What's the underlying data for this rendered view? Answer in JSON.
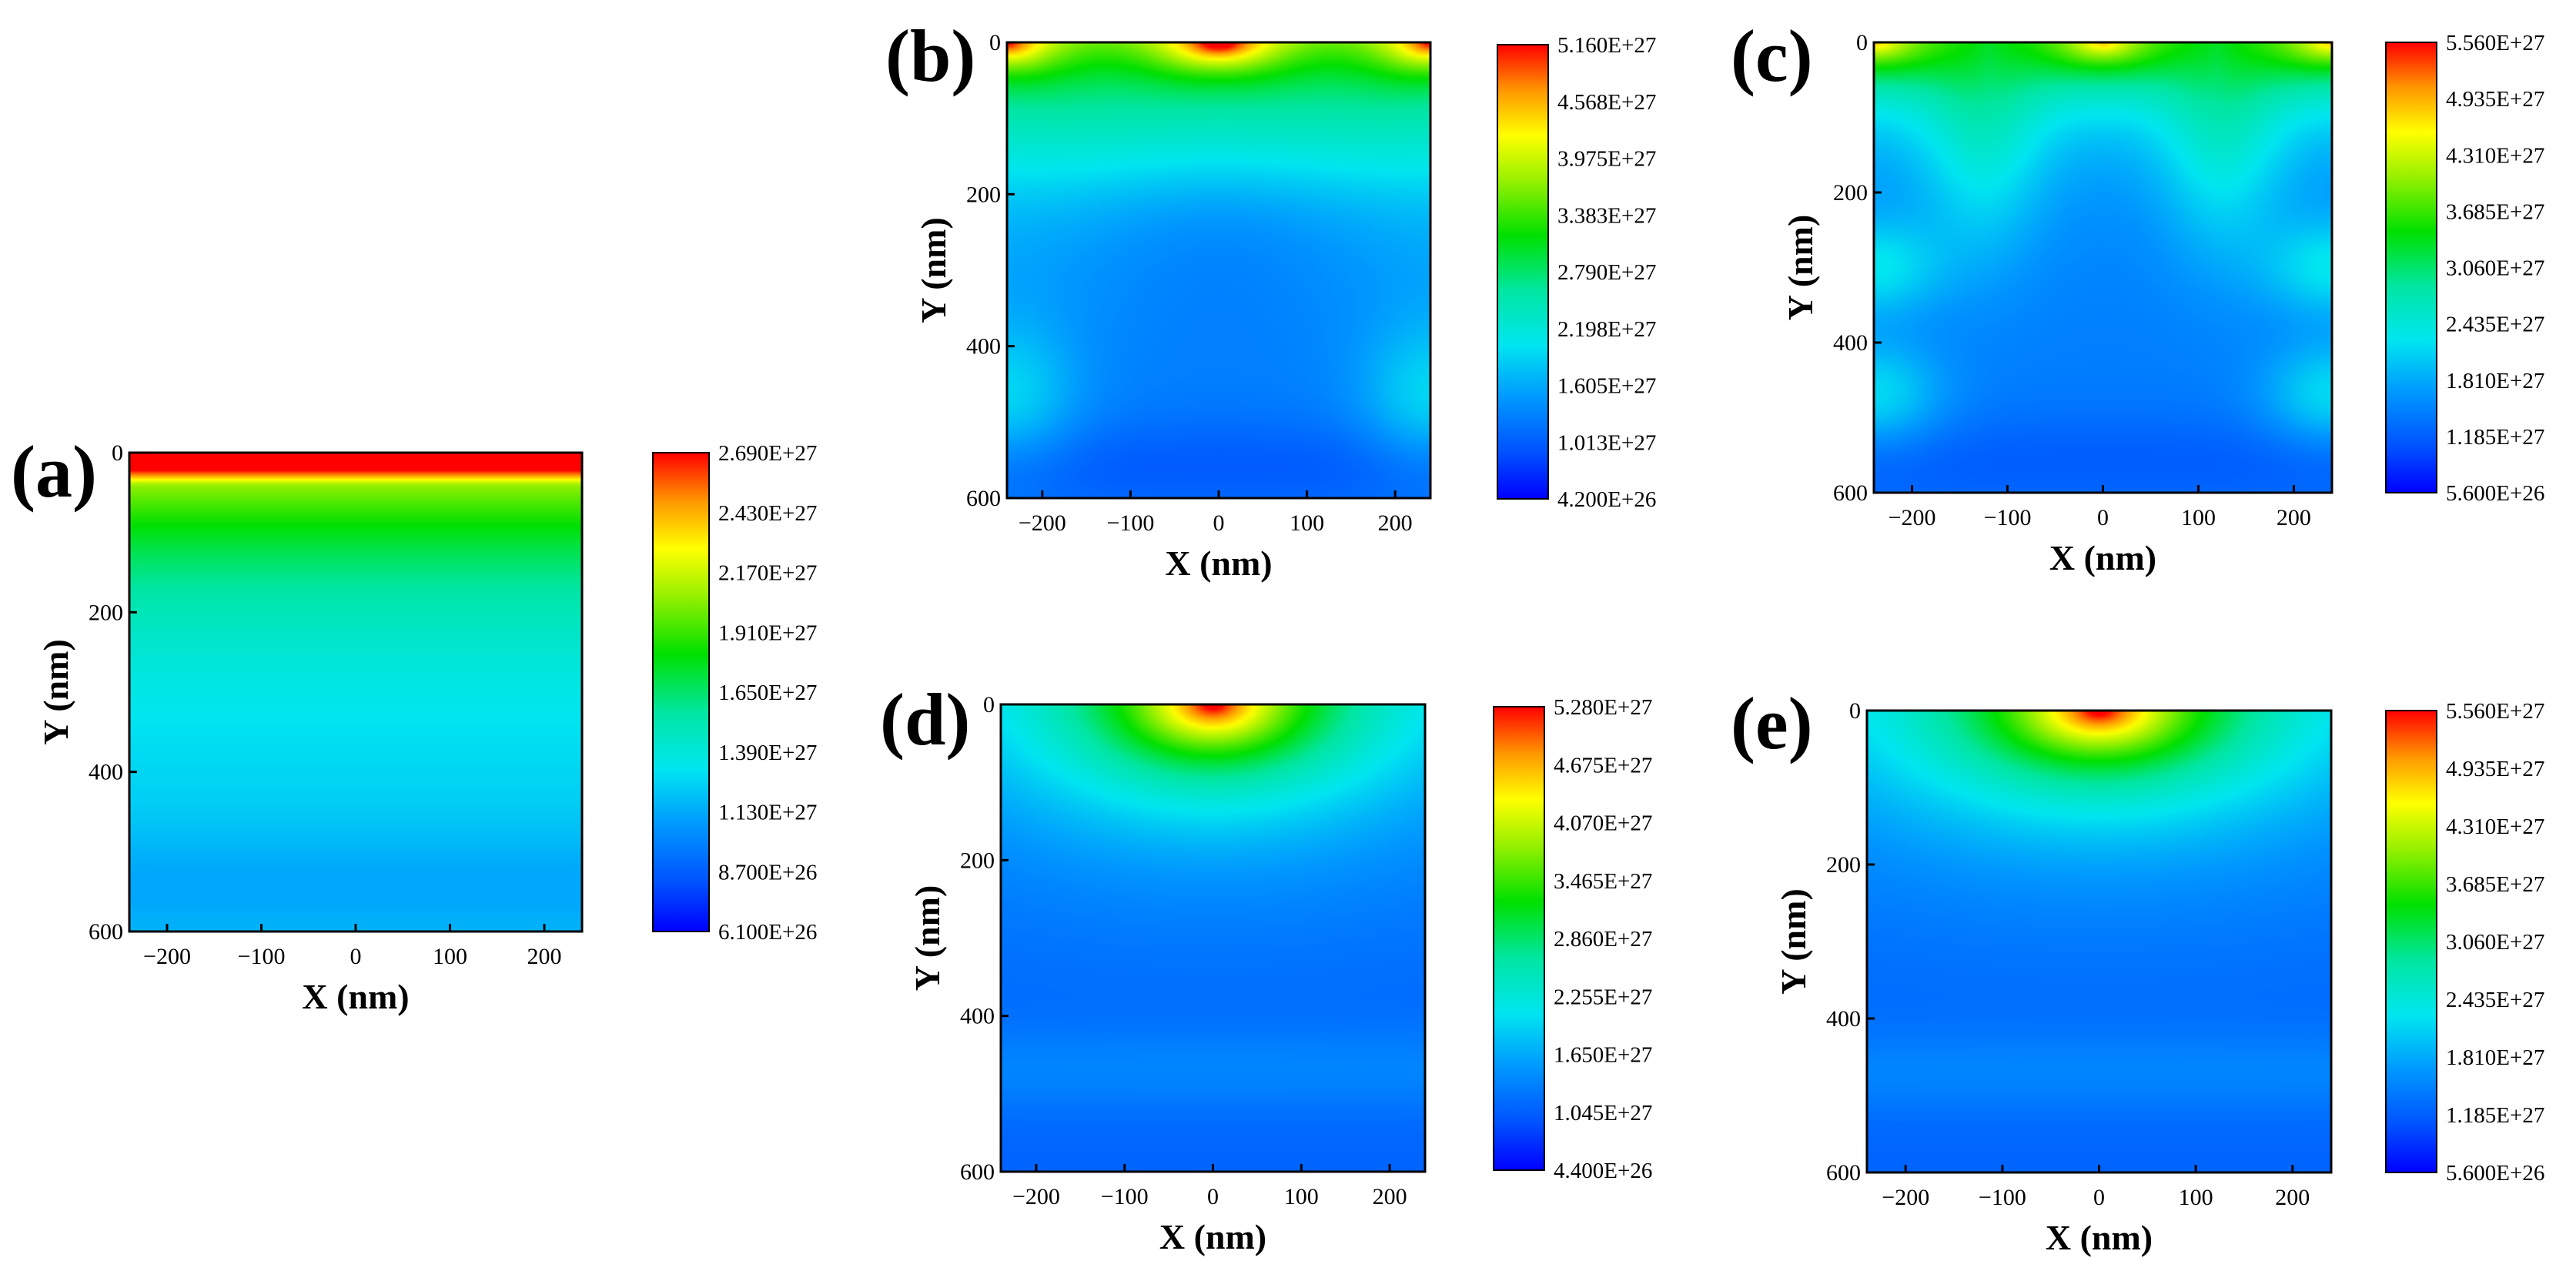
{
  "figure": {
    "description_key": "electron density maps"
  },
  "chart_data": [
    {
      "type": "heatmap",
      "panel_label": "(a)",
      "pattern": "uniform",
      "xlabel": "X (nm)",
      "ylabel": "Y (nm)",
      "xlim": [
        -240,
        240
      ],
      "ylim": [
        600,
        0
      ],
      "x_ticks": [
        -200,
        -100,
        0,
        100,
        200
      ],
      "y_ticks": [
        0,
        200,
        400,
        600
      ],
      "x_tick_labels": [
        "−200",
        "−100",
        "0",
        "100",
        "200"
      ],
      "y_tick_labels": [
        "0",
        "200",
        "400",
        "600"
      ],
      "colorbar_labels": [
        "2.690E+27",
        "2.430E+27",
        "2.170E+27",
        "1.910E+27",
        "1.650E+27",
        "1.390E+27",
        "1.130E+27",
        "8.700E+26",
        "6.100E+26"
      ],
      "value_range": [
        6.1e+26,
        2.69e+27
      ]
    },
    {
      "type": "heatmap",
      "panel_label": "(b)",
      "pattern": "edges",
      "xlabel": "X (nm)",
      "ylabel": "Y (nm)",
      "xlim": [
        -240,
        240
      ],
      "ylim": [
        600,
        0
      ],
      "x_ticks": [
        -200,
        -100,
        0,
        100,
        200
      ],
      "y_ticks": [
        0,
        200,
        400,
        600
      ],
      "x_tick_labels": [
        "−200",
        "−100",
        "0",
        "100",
        "200"
      ],
      "y_tick_labels": [
        "0",
        "200",
        "400",
        "600"
      ],
      "colorbar_labels": [
        "5.160E+27",
        "4.568E+27",
        "3.975E+27",
        "3.383E+27",
        "2.790E+27",
        "2.198E+27",
        "1.605E+27",
        "1.013E+27",
        "4.200E+26"
      ],
      "value_range": [
        4.2e+26,
        5.16e+27
      ]
    },
    {
      "type": "heatmap",
      "panel_label": "(c)",
      "pattern": "triple",
      "xlabel": "X (nm)",
      "ylabel": "Y (nm)",
      "xlim": [
        -240,
        240
      ],
      "ylim": [
        600,
        0
      ],
      "x_ticks": [
        -200,
        -100,
        0,
        100,
        200
      ],
      "y_ticks": [
        0,
        200,
        400,
        600
      ],
      "x_tick_labels": [
        "−200",
        "−100",
        "0",
        "100",
        "200"
      ],
      "y_tick_labels": [
        "0",
        "200",
        "400",
        "600"
      ],
      "colorbar_labels": [
        "5.560E+27",
        "4.935E+27",
        "4.310E+27",
        "3.685E+27",
        "3.060E+27",
        "2.435E+27",
        "1.810E+27",
        "1.185E+27",
        "5.600E+26"
      ],
      "value_range": [
        5.6e+26,
        5.56e+27
      ]
    },
    {
      "type": "heatmap",
      "panel_label": "(d)",
      "pattern": "center",
      "xlabel": "X (nm)",
      "ylabel": "Y (nm)",
      "xlim": [
        -240,
        240
      ],
      "ylim": [
        600,
        0
      ],
      "x_ticks": [
        -200,
        -100,
        0,
        100,
        200
      ],
      "y_ticks": [
        0,
        200,
        400,
        600
      ],
      "x_tick_labels": [
        "−200",
        "−100",
        "0",
        "100",
        "200"
      ],
      "y_tick_labels": [
        "0",
        "200",
        "400",
        "600"
      ],
      "colorbar_labels": [
        "5.280E+27",
        "4.675E+27",
        "4.070E+27",
        "3.465E+27",
        "2.860E+27",
        "2.255E+27",
        "1.650E+27",
        "1.045E+27",
        "4.400E+26"
      ],
      "value_range": [
        4.4e+26,
        5.28e+27
      ]
    },
    {
      "type": "heatmap",
      "panel_label": "(e)",
      "pattern": "center",
      "xlabel": "X (nm)",
      "ylabel": "Y (nm)",
      "xlim": [
        -240,
        240
      ],
      "ylim": [
        600,
        0
      ],
      "x_ticks": [
        -200,
        -100,
        0,
        100,
        200
      ],
      "y_ticks": [
        0,
        200,
        400,
        600
      ],
      "x_tick_labels": [
        "−200",
        "−100",
        "0",
        "100",
        "200"
      ],
      "y_tick_labels": [
        "0",
        "200",
        "400",
        "600"
      ],
      "colorbar_labels": [
        "5.560E+27",
        "4.935E+27",
        "4.310E+27",
        "3.685E+27",
        "3.060E+27",
        "2.435E+27",
        "1.810E+27",
        "1.185E+27",
        "5.600E+26"
      ],
      "value_range": [
        5.6e+26,
        5.56e+27
      ]
    }
  ]
}
